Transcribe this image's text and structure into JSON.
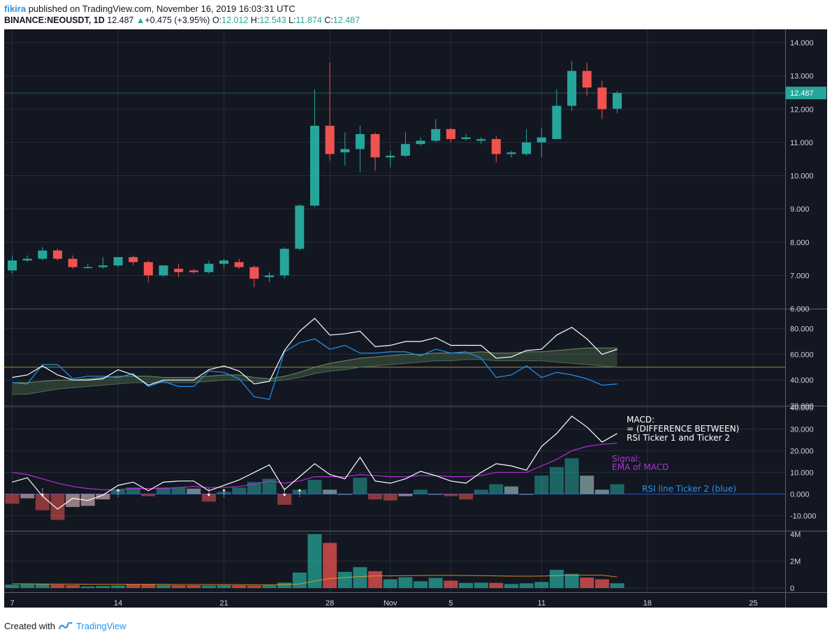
{
  "header": {
    "user": "fikira",
    "published": "published on TradingView.com, November 16, 2019 16:03:31 UTC",
    "symbol": "BINANCE:NEOUSDT, 1D",
    "last": "12.487",
    "change": "+0.475 (+3.95%)",
    "o_label": "O:",
    "o": "12.012",
    "h_label": "H:",
    "h": "12.543",
    "l_label": "L:",
    "l": "11.874",
    "c_label": "C:",
    "c": "12.487"
  },
  "footer": {
    "created_with": "Created with",
    "brand": "TradingView"
  },
  "colors": {
    "bg": "#131722",
    "up": "#26a69a",
    "down": "#ef5350",
    "grid": "#2a2e39",
    "rsi1": "#ffffff",
    "rsi2": "#2196f3",
    "signal": "#b42fd9",
    "volma": "#f7a21b"
  },
  "chart_data": [
    {
      "type": "candlestick",
      "title": "",
      "x_ticks": [
        "7",
        "14",
        "21",
        "28",
        "Nov",
        "5",
        "11",
        "18",
        "25"
      ],
      "y_ticks": [
        "6.000",
        "7.000",
        "8.000",
        "9.000",
        "10.000",
        "11.000",
        "12.000",
        "13.000",
        "14.000"
      ],
      "ylim": [
        6.0,
        14.4
      ],
      "last_price_label": "12.487",
      "candles": [
        {
          "date": "Oct 7",
          "o": 7.15,
          "h": 7.6,
          "l": 7.05,
          "c": 7.45
        },
        {
          "date": "Oct 8",
          "o": 7.45,
          "h": 7.6,
          "l": 7.4,
          "c": 7.5
        },
        {
          "date": "Oct 9",
          "o": 7.5,
          "h": 7.85,
          "l": 7.45,
          "c": 7.75
        },
        {
          "date": "Oct 10",
          "o": 7.75,
          "h": 7.8,
          "l": 7.45,
          "c": 7.5
        },
        {
          "date": "Oct 11",
          "o": 7.5,
          "h": 7.6,
          "l": 7.2,
          "c": 7.25
        },
        {
          "date": "Oct 12",
          "o": 7.25,
          "h": 7.35,
          "l": 7.2,
          "c": 7.25
        },
        {
          "date": "Oct 13",
          "o": 7.25,
          "h": 7.55,
          "l": 7.2,
          "c": 7.3
        },
        {
          "date": "Oct 14",
          "o": 7.3,
          "h": 7.55,
          "l": 7.25,
          "c": 7.55
        },
        {
          "date": "Oct 15",
          "o": 7.55,
          "h": 7.6,
          "l": 7.3,
          "c": 7.4
        },
        {
          "date": "Oct 16",
          "o": 7.4,
          "h": 7.45,
          "l": 6.8,
          "c": 7.0
        },
        {
          "date": "Oct 17",
          "o": 7.0,
          "h": 7.3,
          "l": 6.95,
          "c": 7.3
        },
        {
          "date": "Oct 18",
          "o": 7.2,
          "h": 7.35,
          "l": 6.95,
          "c": 7.1
        },
        {
          "date": "Oct 19",
          "o": 7.15,
          "h": 7.2,
          "l": 7.05,
          "c": 7.1
        },
        {
          "date": "Oct 20",
          "o": 7.1,
          "h": 7.45,
          "l": 7.05,
          "c": 7.35
        },
        {
          "date": "Oct 21",
          "o": 7.35,
          "h": 7.5,
          "l": 7.2,
          "c": 7.45
        },
        {
          "date": "Oct 22",
          "o": 7.4,
          "h": 7.5,
          "l": 7.2,
          "c": 7.25
        },
        {
          "date": "Oct 23",
          "o": 7.25,
          "h": 7.3,
          "l": 6.65,
          "c": 6.9
        },
        {
          "date": "Oct 24",
          "o": 6.95,
          "h": 7.1,
          "l": 6.8,
          "c": 7.0
        },
        {
          "date": "Oct 25",
          "o": 7.0,
          "h": 7.85,
          "l": 6.9,
          "c": 7.8
        },
        {
          "date": "Oct 26",
          "o": 7.8,
          "h": 9.15,
          "l": 7.75,
          "c": 9.1
        },
        {
          "date": "Oct 27",
          "o": 9.1,
          "h": 12.6,
          "l": 9.05,
          "c": 11.5
        },
        {
          "date": "Oct 28",
          "o": 11.5,
          "h": 13.4,
          "l": 10.45,
          "c": 10.65
        },
        {
          "date": "Oct 29",
          "o": 10.7,
          "h": 11.3,
          "l": 10.3,
          "c": 10.8
        },
        {
          "date": "Oct 30",
          "o": 10.8,
          "h": 11.5,
          "l": 10.1,
          "c": 11.25
        },
        {
          "date": "Oct 31",
          "o": 11.25,
          "h": 11.3,
          "l": 10.15,
          "c": 10.55
        },
        {
          "date": "Nov 1",
          "o": 10.55,
          "h": 10.75,
          "l": 10.25,
          "c": 10.6
        },
        {
          "date": "Nov 2",
          "o": 10.6,
          "h": 11.3,
          "l": 10.55,
          "c": 10.95
        },
        {
          "date": "Nov 3",
          "o": 10.95,
          "h": 11.15,
          "l": 10.9,
          "c": 11.05
        },
        {
          "date": "Nov 4",
          "o": 11.05,
          "h": 11.7,
          "l": 11.0,
          "c": 11.4
        },
        {
          "date": "Nov 5",
          "o": 11.4,
          "h": 11.45,
          "l": 11.0,
          "c": 11.1
        },
        {
          "date": "Nov 6",
          "o": 11.1,
          "h": 11.25,
          "l": 11.05,
          "c": 11.15
        },
        {
          "date": "Nov 7",
          "o": 11.05,
          "h": 11.15,
          "l": 10.95,
          "c": 11.1
        },
        {
          "date": "Nov 8",
          "o": 11.1,
          "h": 11.2,
          "l": 10.4,
          "c": 10.65
        },
        {
          "date": "Nov 9",
          "o": 10.65,
          "h": 10.75,
          "l": 10.55,
          "c": 10.7
        },
        {
          "date": "Nov 10",
          "o": 10.65,
          "h": 11.4,
          "l": 10.6,
          "c": 11.0
        },
        {
          "date": "Nov 11",
          "o": 11.0,
          "h": 11.45,
          "l": 10.55,
          "c": 11.15
        },
        {
          "date": "Nov 12",
          "o": 11.1,
          "h": 12.6,
          "l": 11.1,
          "c": 12.1
        },
        {
          "date": "Nov 13",
          "o": 12.1,
          "h": 13.45,
          "l": 11.95,
          "c": 13.15
        },
        {
          "date": "Nov 14",
          "o": 13.15,
          "h": 13.4,
          "l": 12.4,
          "c": 12.65
        },
        {
          "date": "Nov 15",
          "o": 12.65,
          "h": 12.85,
          "l": 11.7,
          "c": 12.0
        },
        {
          "date": "Nov 16",
          "o": 12.012,
          "h": 12.543,
          "l": 11.874,
          "c": 12.487
        }
      ]
    },
    {
      "type": "line",
      "title": "",
      "y_ticks": [
        "20.000",
        "40.000",
        "60.000",
        "80.000"
      ],
      "ylim": [
        20,
        95
      ],
      "level": 50,
      "series": [
        {
          "values": [
            42,
            44,
            51,
            44,
            40,
            40,
            41,
            48,
            44,
            36,
            40,
            40,
            40,
            48,
            51,
            47,
            37,
            39,
            63,
            78,
            88,
            75,
            76,
            78,
            66,
            67,
            70,
            70,
            73,
            67,
            67,
            67,
            57,
            58,
            63,
            64,
            75,
            81,
            72,
            60,
            64
          ]
        },
        {
          "values": [
            38,
            37,
            52,
            52,
            41,
            43,
            43,
            42,
            45,
            35,
            39,
            35,
            35,
            47,
            46,
            41,
            27,
            25,
            62,
            69,
            72,
            64,
            67,
            61,
            61,
            62,
            62,
            59,
            64,
            61,
            62,
            57,
            42,
            44,
            51,
            42,
            46,
            44,
            41,
            36,
            37
          ]
        },
        {
          "values": [
            38,
            38,
            39,
            40,
            40,
            41,
            42,
            43,
            43,
            43,
            42,
            42,
            42,
            43,
            44,
            44,
            42,
            41,
            43,
            46,
            50,
            53,
            55,
            57,
            58,
            59,
            60,
            60,
            61,
            61,
            61,
            62,
            61,
            61,
            62,
            62,
            63,
            64,
            65,
            65,
            65
          ]
        },
        {
          "values": [
            29,
            29,
            31,
            33,
            34,
            35,
            36,
            37,
            38,
            38,
            38,
            38,
            38,
            39,
            40,
            40,
            39,
            39,
            40,
            42,
            45,
            47,
            48,
            50,
            51,
            52,
            53,
            54,
            55,
            55,
            56,
            56,
            55,
            55,
            55,
            55,
            54,
            53,
            52,
            51,
            50
          ]
        }
      ]
    },
    {
      "type": "line",
      "title": "",
      "y_ticks": [
        "-10.000",
        "0.000",
        "10.000",
        "20.000",
        "30.000",
        "40.000"
      ],
      "ylim": [
        -17,
        40.5
      ],
      "annotations": [
        {
          "text": "MACD:"
        },
        {
          "text": "= (DIFFERENCE BETWEEN)"
        },
        {
          "text": "RSI Ticker 1 and Ticker 2"
        },
        {
          "text": "Signal:"
        },
        {
          "text": "EMA of MACD"
        },
        {
          "text": "RSI line Ticker 2 (blue)"
        }
      ],
      "series": [
        {
          "values": [
            5.5,
            7.5,
            -1,
            -7,
            -2,
            -3,
            -0.5,
            4,
            5.5,
            1.5,
            5.5,
            6,
            6,
            1.5,
            4,
            6.5,
            10,
            13.5,
            2,
            8,
            14,
            9,
            7,
            17,
            6,
            5,
            7,
            10.5,
            8.5,
            6,
            5,
            10,
            14,
            13,
            11,
            22,
            28,
            36,
            31,
            24,
            28
          ]
        },
        {
          "values": [
            10,
            9,
            7,
            5,
            3.5,
            2.5,
            2,
            2,
            2.5,
            2.5,
            2.5,
            3,
            3.5,
            3,
            3,
            3.5,
            4.5,
            6,
            5,
            6,
            8,
            8,
            8,
            9,
            8.5,
            8,
            8,
            8.5,
            8.5,
            8,
            8,
            8.5,
            10,
            10,
            10,
            13,
            16,
            20,
            22,
            23,
            23.5
          ]
        },
        {
          "values": [
            -4.5,
            -2,
            -7.5,
            -12,
            -6,
            -5.5,
            -2.5,
            2,
            3,
            -1,
            3,
            3,
            2.5,
            -3.5,
            1,
            3,
            5.5,
            7,
            -5,
            2,
            6.5,
            2,
            0,
            7.5,
            -2.5,
            -3,
            -1,
            2,
            0,
            -1,
            -2.5,
            2,
            4.5,
            3.5,
            0,
            8.5,
            12.5,
            16.5,
            8.5,
            2,
            4.5
          ]
        }
      ]
    },
    {
      "type": "bar",
      "title": "",
      "y_ticks": [
        "0",
        "2M",
        "4M"
      ],
      "ylim": [
        0,
        4.2
      ],
      "values": [
        0.25,
        0.28,
        0.3,
        0.25,
        0.22,
        0.12,
        0.15,
        0.18,
        0.28,
        0.28,
        0.22,
        0.2,
        0.2,
        0.18,
        0.2,
        0.2,
        0.18,
        0.2,
        0.4,
        1.15,
        4.0,
        3.35,
        1.2,
        1.55,
        1.25,
        0.65,
        0.8,
        0.5,
        0.75,
        0.55,
        0.38,
        0.4,
        0.38,
        0.3,
        0.35,
        0.45,
        1.35,
        1.05,
        0.78,
        0.65,
        0.35
      ],
      "ma": [
        0.32,
        0.31,
        0.3,
        0.3,
        0.29,
        0.28,
        0.27,
        0.27,
        0.27,
        0.27,
        0.27,
        0.26,
        0.26,
        0.25,
        0.25,
        0.25,
        0.24,
        0.24,
        0.25,
        0.3,
        0.52,
        0.7,
        0.78,
        0.85,
        0.9,
        0.9,
        0.92,
        0.93,
        0.94,
        0.94,
        0.93,
        0.92,
        0.9,
        0.88,
        0.88,
        0.89,
        0.92,
        0.95,
        0.95,
        0.95,
        0.82
      ]
    }
  ]
}
